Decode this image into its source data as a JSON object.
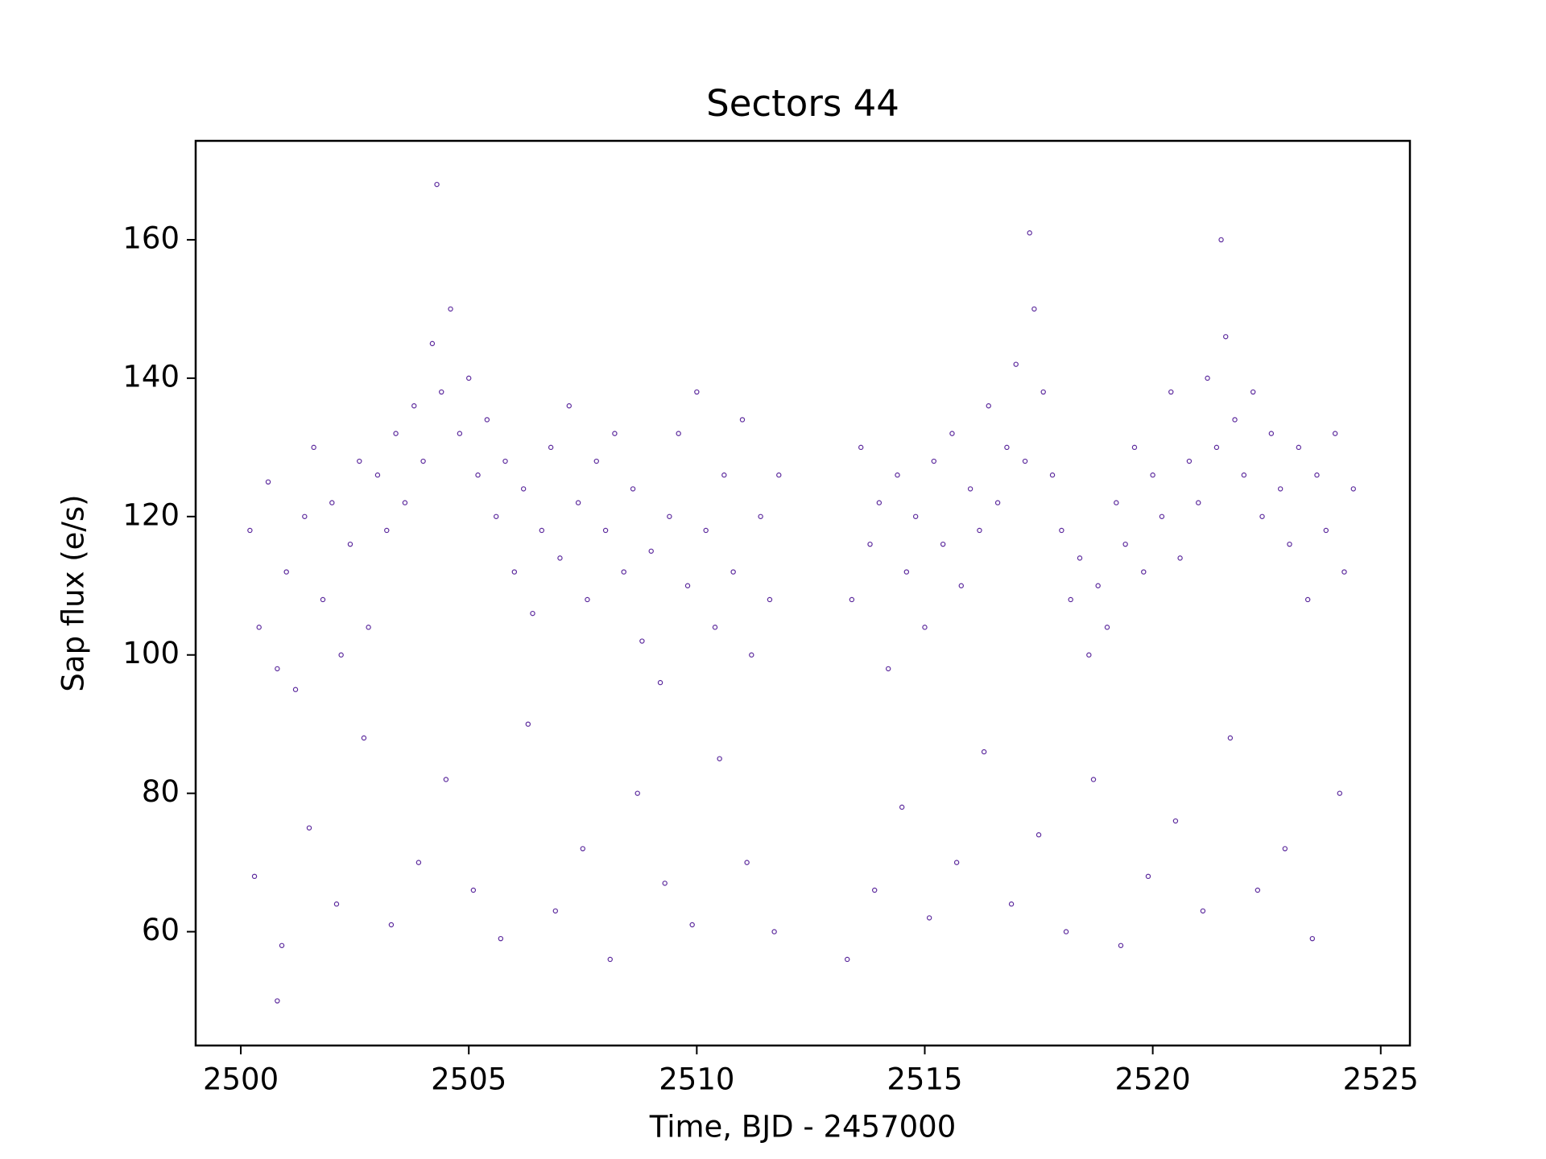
{
  "chart_data": {
    "type": "scatter",
    "title": "Sectors 44",
    "x_label": "Time, BJD - 2457000",
    "y_label": "Sap flux (e/s)",
    "xlim": [
      2499.01,
      2525.64
    ],
    "ylim": [
      43.55,
      174.3
    ],
    "xticks": [
      2500,
      2505,
      2510,
      2515,
      2520,
      2525
    ],
    "yticks": [
      60,
      80,
      100,
      120,
      140,
      160
    ],
    "series": [
      {
        "color": "#5c2a9d",
        "x": [
          2500.2,
          2500.4,
          2500.6,
          2500.8,
          2501.0,
          2501.2,
          2501.4,
          2501.6,
          2501.8,
          2502.0,
          2502.2,
          2502.4,
          2502.6,
          2502.8,
          2503.0,
          2503.2,
          2503.4,
          2503.6,
          2503.8,
          2504.0,
          2504.2,
          2504.4,
          2504.6,
          2504.8,
          2505.0,
          2505.2,
          2505.4,
          2505.6,
          2505.8,
          2506.0,
          2506.2,
          2506.4,
          2506.6,
          2506.8,
          2507.0,
          2507.2,
          2507.4,
          2507.6,
          2507.8,
          2508.0,
          2508.2,
          2508.4,
          2508.6,
          2508.8,
          2509.0,
          2509.2,
          2509.4,
          2509.6,
          2509.8,
          2510.0,
          2510.2,
          2510.4,
          2510.6,
          2510.8,
          2511.0,
          2511.2,
          2511.4,
          2511.6,
          2511.8,
          2513.4,
          2513.6,
          2513.8,
          2514.0,
          2514.2,
          2514.4,
          2514.6,
          2514.8,
          2515.0,
          2515.2,
          2515.4,
          2515.6,
          2515.8,
          2516.0,
          2516.2,
          2516.4,
          2516.6,
          2516.8,
          2517.0,
          2517.2,
          2517.4,
          2517.6,
          2517.8,
          2518.0,
          2518.2,
          2518.4,
          2518.6,
          2518.8,
          2519.0,
          2519.2,
          2519.4,
          2519.6,
          2519.8,
          2520.0,
          2520.2,
          2520.4,
          2520.6,
          2520.8,
          2521.0,
          2521.2,
          2521.4,
          2521.6,
          2521.8,
          2522.0,
          2522.2,
          2522.4,
          2522.6,
          2522.8,
          2523.0,
          2523.2,
          2523.4,
          2523.6,
          2523.8,
          2524.0,
          2524.2,
          2524.4,
          2500.3,
          2500.9,
          2501.5,
          2502.1,
          2502.7,
          2503.3,
          2503.9,
          2504.5,
          2505.1,
          2505.7,
          2506.3,
          2506.9,
          2507.5,
          2508.1,
          2508.7,
          2509.3,
          2509.9,
          2510.5,
          2511.1,
          2511.7,
          2513.3,
          2513.9,
          2514.5,
          2515.1,
          2515.7,
          2516.3,
          2516.9,
          2517.5,
          2518.1,
          2518.7,
          2519.3,
          2519.9,
          2520.5,
          2521.1,
          2521.7,
          2522.3,
          2522.9,
          2523.5,
          2524.1,
          2500.8,
          2504.3,
          2517.3,
          2521.5
        ],
        "values": [
          118,
          104,
          125,
          98,
          112,
          95,
          120,
          130,
          108,
          122,
          100,
          116,
          128,
          104,
          126,
          118,
          132,
          122,
          136,
          128,
          145,
          138,
          150,
          132,
          140,
          126,
          134,
          120,
          128,
          112,
          124,
          106,
          118,
          130,
          114,
          136,
          122,
          108,
          128,
          118,
          132,
          112,
          124,
          102,
          115,
          96,
          120,
          132,
          110,
          138,
          118,
          104,
          126,
          112,
          134,
          100,
          120,
          108,
          126,
          108,
          130,
          116,
          122,
          98,
          126,
          112,
          120,
          104,
          128,
          116,
          132,
          110,
          124,
          118,
          136,
          122,
          130,
          142,
          128,
          150,
          138,
          126,
          118,
          108,
          114,
          100,
          110,
          104,
          122,
          116,
          130,
          112,
          126,
          120,
          138,
          114,
          128,
          122,
          140,
          130,
          146,
          134,
          126,
          138,
          120,
          132,
          124,
          116,
          130,
          108,
          126,
          118,
          132,
          112,
          124,
          68,
          58,
          75,
          64,
          88,
          61,
          70,
          82,
          66,
          59,
          90,
          63,
          72,
          56,
          80,
          67,
          61,
          85,
          70,
          60,
          56,
          66,
          78,
          62,
          70,
          86,
          64,
          74,
          60,
          82,
          58,
          68,
          76,
          63,
          88,
          66,
          72,
          59,
          80,
          50,
          168,
          161,
          160
        ]
      }
    ]
  }
}
